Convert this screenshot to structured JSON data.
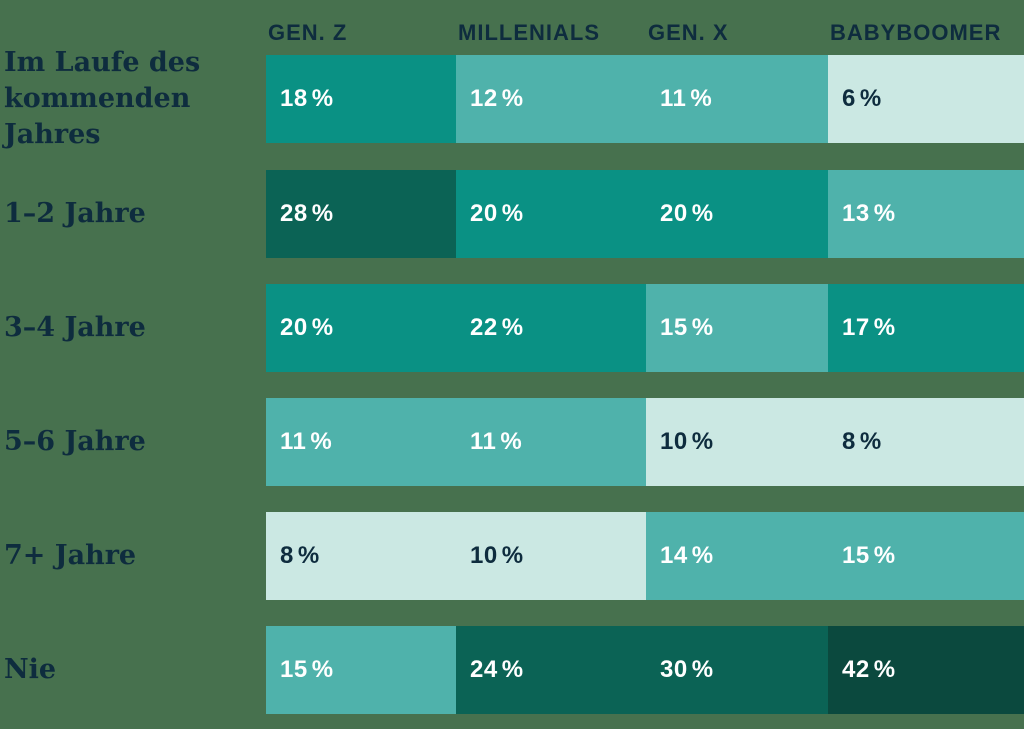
{
  "chart_data": {
    "type": "heatmap",
    "columns": [
      "GEN. Z",
      "MILLENIALS",
      "GEN. X",
      "BABYBOOMER"
    ],
    "rows": [
      "Im Laufe des kommenden Jahres",
      "1–2 Jahre",
      "3–4 Jahre",
      "5–6 Jahre",
      "7+ Jahre",
      "Nie"
    ],
    "unit": "%",
    "values": [
      [
        18,
        12,
        11,
        6
      ],
      [
        28,
        20,
        20,
        13
      ],
      [
        20,
        22,
        15,
        17
      ],
      [
        11,
        11,
        10,
        8
      ],
      [
        8,
        10,
        14,
        15
      ],
      [
        15,
        24,
        30,
        42
      ]
    ],
    "cell_levels": [
      [
        "teal",
        "light",
        "light",
        "mint"
      ],
      [
        "dark",
        "teal",
        "teal",
        "light"
      ],
      [
        "teal",
        "teal",
        "light",
        "teal"
      ],
      [
        "light",
        "light",
        "mint",
        "mint"
      ],
      [
        "mint",
        "mint",
        "light",
        "light"
      ],
      [
        "light",
        "dark",
        "dark",
        "deepest"
      ]
    ],
    "palette": {
      "mint": "#CBE8E3",
      "light": "#4FB2AB",
      "teal": "#0A9184",
      "dark": "#0B6355",
      "deepest": "#0B493E"
    },
    "text_colors": {
      "on_light_cell": "#0E2C3E",
      "on_dark_cell": "#FFFFFF"
    },
    "background": "#47714E",
    "layout_hint": "6 horizontal full-width rows, 4 equal columns, legendless; column headers on top, serif row labels on left"
  }
}
